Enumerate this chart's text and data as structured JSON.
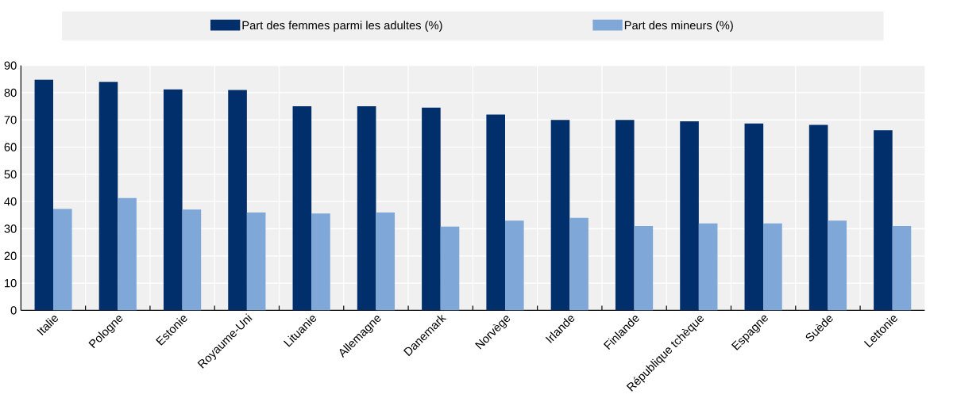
{
  "chart_data": {
    "type": "bar",
    "categories": [
      "Italie",
      "Pologne",
      "Estonie",
      "Royaume-Uni",
      "Lituanie",
      "Allemagne",
      "Danemark",
      "Norvège",
      "Irlande",
      "Finlande",
      "République tchèque",
      "Espagne",
      "Suède",
      "Lettonie"
    ],
    "series": [
      {
        "name": "Part des femmes parmi les adultes (%)",
        "color": "#002f6c",
        "values": [
          84.8,
          84,
          81.2,
          81,
          75,
          75,
          74.5,
          72,
          70,
          70,
          69.5,
          68.7,
          68.2,
          66.2
        ]
      },
      {
        "name": "Part des mineurs (%)",
        "color": "#7fa8d8",
        "values": [
          37.3,
          41.3,
          37.1,
          36,
          35.6,
          36,
          30.8,
          33,
          34,
          31,
          32,
          32,
          33,
          31
        ]
      }
    ],
    "ylim": [
      0,
      90
    ],
    "yticks": [
      0,
      10,
      20,
      30,
      40,
      50,
      60,
      70,
      80,
      90
    ],
    "grid": true,
    "legend": "top"
  }
}
